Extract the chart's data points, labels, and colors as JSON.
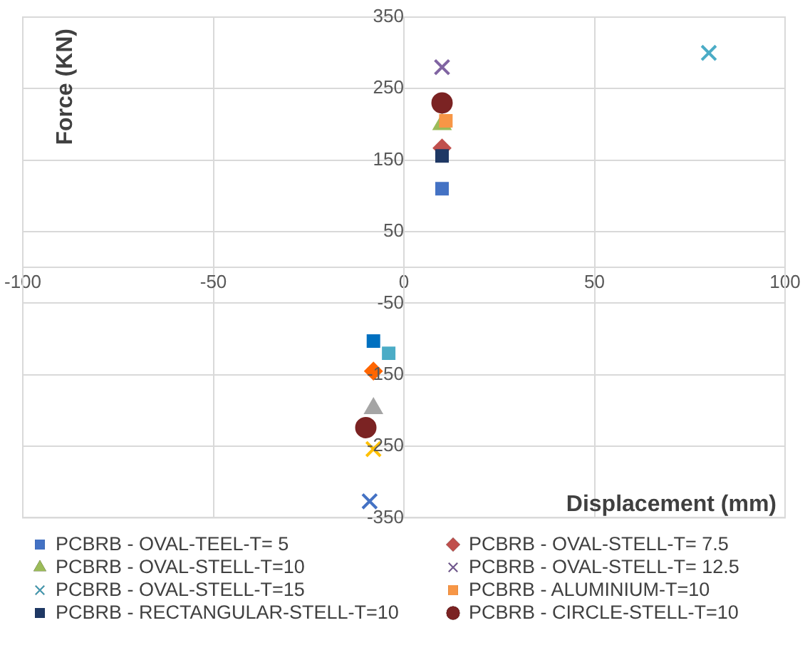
{
  "chart_data": {
    "type": "scatter",
    "xlabel": "Displacement (mm)",
    "ylabel": "Force (KN)",
    "xlim": [
      -100,
      100
    ],
    "xticks": [
      -100,
      -50,
      0,
      50,
      100
    ],
    "ylim": [
      -350,
      350
    ],
    "yticks": [
      -350,
      -250,
      -150,
      -50,
      50,
      150,
      250,
      350
    ],
    "grid": true,
    "legend": "bottom",
    "series": [
      {
        "name": "PCBRB - OVAL-TEEL-T= 5",
        "color": "#4472c4",
        "colors": [
          "#4472c4",
          "#0070c0"
        ],
        "marker": "square",
        "x": [
          10,
          -8
        ],
        "values": [
          110,
          -103
        ]
      },
      {
        "name": "PCBRB - OVAL-STELL-T= 7.5",
        "color": "#c0504d",
        "colors": [
          "#c0504d",
          "#ff6600"
        ],
        "marker": "diamond",
        "x": [
          10,
          -8
        ],
        "values": [
          167,
          -145
        ]
      },
      {
        "name": "PCBRB - OVAL-STELL-T=10",
        "color": "#9bbb59",
        "colors": [
          "#9bbb59",
          "#a5a5a5"
        ],
        "marker": "triangle",
        "x": [
          10,
          -8
        ],
        "values": [
          200,
          -197
        ]
      },
      {
        "name": "PCBRB - OVAL-STELL-T= 12.5",
        "color": "#8064a2",
        "colors": [
          "#8064a2",
          "#ffc000"
        ],
        "marker": "cross",
        "x": [
          10,
          -8
        ],
        "values": [
          280,
          -254
        ]
      },
      {
        "name": "PCBRB - OVAL-STELL-T=15",
        "color": "#4bacc6",
        "colors": [
          "#4bacc6",
          "#4472c4"
        ],
        "marker": "cross",
        "x": [
          80,
          -9
        ],
        "values": [
          300,
          -327
        ]
      },
      {
        "name": "PCBRB - ALUMINIUM-T=10",
        "color": "#f79646",
        "marker": "square",
        "x": [
          11
        ],
        "values": [
          205
        ]
      },
      {
        "name": "PCBRB - RECTANGULAR-STELL-T=10",
        "color": "#1f3864",
        "colors": [
          "#1f3864",
          "#4bacc6"
        ],
        "marker": "square",
        "x": [
          10,
          -4
        ],
        "values": [
          156,
          -120
        ]
      },
      {
        "name": "PCBRB - CIRCLE-STELL-T=10",
        "color": "#7b2323",
        "marker": "circle",
        "x": [
          10,
          -10
        ],
        "values": [
          230,
          -224
        ]
      }
    ]
  }
}
